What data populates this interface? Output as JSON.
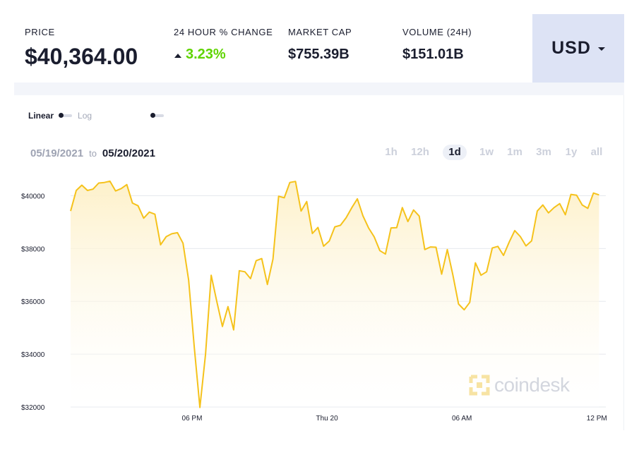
{
  "stats": {
    "price": {
      "label": "PRICE",
      "value": "$40,364.00"
    },
    "change": {
      "label": "24 HOUR % CHANGE",
      "value": "3.23%",
      "color": "#5fd400"
    },
    "market_cap": {
      "label": "MARKET CAP",
      "value": "$755.39B"
    },
    "volume": {
      "label": "VOLUME (24H)",
      "value": "$151.01B"
    }
  },
  "currency": {
    "label": "USD",
    "icon": "caret-down-icon"
  },
  "scale": {
    "linear": "Linear",
    "log": "Log"
  },
  "date_range": {
    "from": "05/19/2021",
    "to_word": "to",
    "to": "05/20/2021"
  },
  "time_ranges": [
    "1h",
    "12h",
    "1d",
    "1w",
    "1m",
    "3m",
    "1y",
    "all"
  ],
  "active_range": "1d",
  "watermark": "coindesk",
  "colors": {
    "line": "#f5c21b",
    "fill_top": "#fdf0c7",
    "fill_bottom": "#ffffff",
    "grid": "#e6e8ee",
    "accent_box": "#dde3f5"
  },
  "chart_data": {
    "type": "area",
    "title": "",
    "xlabel": "",
    "ylabel": "",
    "ylim": [
      32000,
      41000
    ],
    "yticks": [
      {
        "value": 32000,
        "label": "$32000"
      },
      {
        "value": 34000,
        "label": "$34000"
      },
      {
        "value": 36000,
        "label": "$36000"
      },
      {
        "value": 38000,
        "label": "$38000"
      },
      {
        "value": 40000,
        "label": "$40000"
      }
    ],
    "x_range_hours": [
      12.6,
      36.4
    ],
    "xticks": [
      {
        "hour": 18,
        "label": "06 PM"
      },
      {
        "hour": 24,
        "label": "Thu 20"
      },
      {
        "hour": 30,
        "label": "06 AM"
      },
      {
        "hour": 36,
        "label": "12 PM"
      }
    ],
    "series": [
      {
        "values": [
          [
            12.6,
            39420
          ],
          [
            12.85,
            40200
          ],
          [
            13.1,
            40400
          ],
          [
            13.35,
            40200
          ],
          [
            13.6,
            40250
          ],
          [
            13.85,
            40480
          ],
          [
            14.1,
            40500
          ],
          [
            14.35,
            40550
          ],
          [
            14.6,
            40180
          ],
          [
            14.85,
            40270
          ],
          [
            15.1,
            40420
          ],
          [
            15.35,
            39720
          ],
          [
            15.6,
            39620
          ],
          [
            15.85,
            39150
          ],
          [
            16.1,
            39380
          ],
          [
            16.35,
            39300
          ],
          [
            16.6,
            38140
          ],
          [
            16.85,
            38450
          ],
          [
            17.1,
            38560
          ],
          [
            17.35,
            38600
          ],
          [
            17.6,
            38200
          ],
          [
            17.85,
            36800
          ],
          [
            18.1,
            34250
          ],
          [
            18.35,
            31980
          ],
          [
            18.6,
            34000
          ],
          [
            18.85,
            36990
          ],
          [
            19.1,
            36000
          ],
          [
            19.35,
            35050
          ],
          [
            19.6,
            35800
          ],
          [
            19.85,
            34920
          ],
          [
            20.1,
            37160
          ],
          [
            20.35,
            37120
          ],
          [
            20.6,
            36860
          ],
          [
            20.85,
            37540
          ],
          [
            21.1,
            37620
          ],
          [
            21.35,
            36640
          ],
          [
            21.6,
            37600
          ],
          [
            21.85,
            39980
          ],
          [
            22.1,
            39920
          ],
          [
            22.35,
            40500
          ],
          [
            22.6,
            40540
          ],
          [
            22.85,
            39420
          ],
          [
            23.1,
            39780
          ],
          [
            23.35,
            38570
          ],
          [
            23.6,
            38800
          ],
          [
            23.85,
            38090
          ],
          [
            24.1,
            38280
          ],
          [
            24.35,
            38820
          ],
          [
            24.6,
            38880
          ],
          [
            24.85,
            39160
          ],
          [
            25.1,
            39540
          ],
          [
            25.35,
            39880
          ],
          [
            25.6,
            39240
          ],
          [
            25.85,
            38780
          ],
          [
            26.1,
            38440
          ],
          [
            26.35,
            37920
          ],
          [
            26.6,
            37790
          ],
          [
            26.85,
            38780
          ],
          [
            27.1,
            38790
          ],
          [
            27.35,
            39550
          ],
          [
            27.6,
            39020
          ],
          [
            27.85,
            39460
          ],
          [
            28.1,
            39230
          ],
          [
            28.35,
            37960
          ],
          [
            28.6,
            38060
          ],
          [
            28.85,
            38050
          ],
          [
            29.1,
            37030
          ],
          [
            29.35,
            37960
          ],
          [
            29.6,
            37000
          ],
          [
            29.85,
            35900
          ],
          [
            30.1,
            35680
          ],
          [
            30.35,
            35960
          ],
          [
            30.6,
            37460
          ],
          [
            30.85,
            36990
          ],
          [
            31.1,
            37120
          ],
          [
            31.35,
            38020
          ],
          [
            31.6,
            38080
          ],
          [
            31.85,
            37740
          ],
          [
            32.1,
            38240
          ],
          [
            32.35,
            38680
          ],
          [
            32.6,
            38450
          ],
          [
            32.85,
            38100
          ],
          [
            33.1,
            38290
          ],
          [
            33.35,
            39420
          ],
          [
            33.6,
            39650
          ],
          [
            33.85,
            39350
          ],
          [
            34.1,
            39550
          ],
          [
            34.35,
            39700
          ],
          [
            34.6,
            39280
          ],
          [
            34.85,
            40050
          ],
          [
            35.1,
            40020
          ],
          [
            35.35,
            39650
          ],
          [
            35.6,
            39520
          ],
          [
            35.85,
            40100
          ],
          [
            36.1,
            40030
          ]
        ]
      }
    ]
  }
}
